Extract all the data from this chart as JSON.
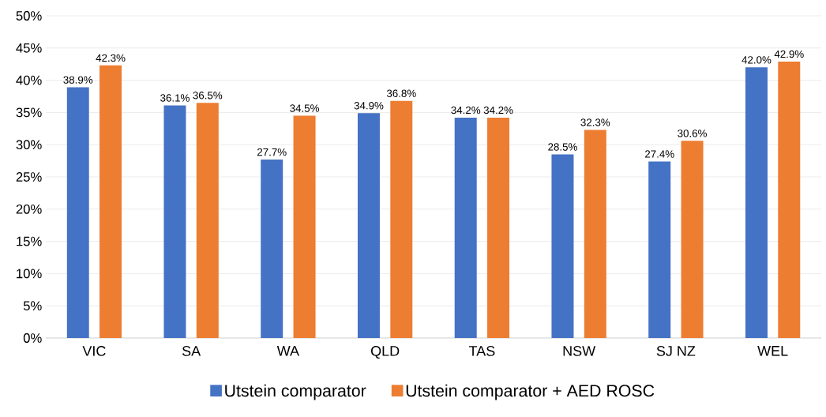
{
  "chart_data": {
    "type": "bar",
    "categories": [
      "VIC",
      "SA",
      "WA",
      "QLD",
      "TAS",
      "NSW",
      "SJ NZ",
      "WEL"
    ],
    "series": [
      {
        "name": "Utstein comparator",
        "color": "#4472c4",
        "values": [
          38.9,
          36.1,
          27.7,
          34.9,
          34.2,
          28.5,
          27.4,
          42.0
        ],
        "value_labels": [
          "38.9%",
          "36.1%",
          "27.7%",
          "34.9%",
          "34.2%",
          "28.5%",
          "27.4%",
          "42.0%"
        ]
      },
      {
        "name": "Utstein comparator + AED ROSC",
        "color": "#ed7d31",
        "values": [
          42.3,
          36.5,
          34.5,
          36.8,
          34.2,
          32.3,
          30.6,
          42.9
        ],
        "value_labels": [
          "42.3%",
          "36.5%",
          "34.5%",
          "36.8%",
          "34.2%",
          "32.3%",
          "30.6%",
          "42.9%"
        ]
      }
    ],
    "ylim": [
      0,
      50
    ],
    "yticks": [
      {
        "value": 0,
        "label": "0%"
      },
      {
        "value": 5,
        "label": "5%"
      },
      {
        "value": 10,
        "label": "10%"
      },
      {
        "value": 15,
        "label": "15%"
      },
      {
        "value": 20,
        "label": "20%"
      },
      {
        "value": 25,
        "label": "25%"
      },
      {
        "value": 30,
        "label": "30%"
      },
      {
        "value": 35,
        "label": "35%"
      },
      {
        "value": 40,
        "label": "40%"
      },
      {
        "value": 45,
        "label": "45%"
      },
      {
        "value": 50,
        "label": "50%"
      }
    ],
    "grid": "y",
    "legend": "bottom"
  }
}
